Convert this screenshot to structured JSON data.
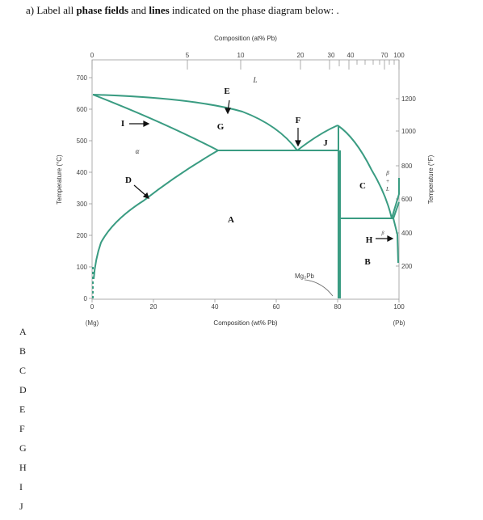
{
  "question": {
    "prefix": "a) Label all ",
    "bold1": "phase fields",
    "mid": " and ",
    "bold2": "lines",
    "suffix": " indicated on the phase diagram below",
    "trail": ":  ."
  },
  "figure": {
    "top_axis_title": "Composition (at% Pb)",
    "bottom_axis_title": "Composition (wt% Pb)",
    "left_axis_title": "Temperature (°C)",
    "right_axis_title": "Temperature (°F)",
    "left_ticks": [
      "700",
      "600",
      "500",
      "400",
      "300",
      "200",
      "100",
      "0"
    ],
    "bottom_ticks": [
      "0",
      "20",
      "40",
      "60",
      "80",
      "100"
    ],
    "top_ticks": [
      "0",
      "5",
      "10",
      "20",
      "30",
      "40",
      "70",
      "100"
    ],
    "right_ticks": [
      "1200",
      "1000",
      "800",
      "600",
      "400",
      "200"
    ],
    "bottom_left_sub": "(Mg)",
    "bottom_right_sub": "(Pb)",
    "compound_label": "Mg₂Pb",
    "alpha_label": "α",
    "liquid_label": "L",
    "beta_plus_L": [
      "β",
      "+",
      "L"
    ],
    "beta_small": "β",
    "line_color": "#3a9c82",
    "markers": [
      "A",
      "B",
      "D",
      "E",
      "F",
      "G",
      "H",
      "I",
      "J"
    ]
  },
  "answer_labels": [
    "A",
    "B",
    "C",
    "D",
    "E",
    "F",
    "G",
    "H",
    "I",
    "J"
  ]
}
